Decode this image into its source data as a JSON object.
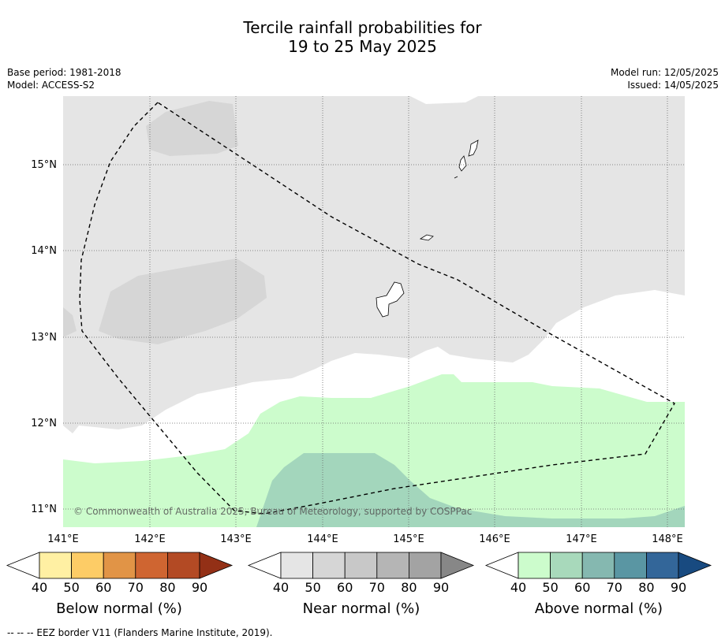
{
  "header": {
    "title_line1": "Tercile rainfall probabilities for",
    "title_line2": "19 to 25 May 2025"
  },
  "meta": {
    "base_period": "Base period: 1981-2018",
    "model": "Model: ACCESS-S2",
    "model_run": "Model run: 12/05/2025",
    "issued": "Issued: 14/05/2025"
  },
  "map": {
    "lon_labels": [
      "141°E",
      "142°E",
      "143°E",
      "144°E",
      "145°E",
      "146°E",
      "147°E",
      "148°E"
    ],
    "lat_labels": [
      "15°N",
      "14°N",
      "13°N",
      "12°N",
      "11°N"
    ],
    "copyright": "© Commonwealth of Australia 2025, Bureau of Meteorology, supported by COSPPac",
    "colors": {
      "near_40": "#e5e5e5",
      "near_50": "#d6d6d6",
      "above_40": "#ccfccc",
      "above_50": "#a3d6bc"
    }
  },
  "colorbars": [
    {
      "label": "Below normal (%)",
      "ticks": [
        "40",
        "50",
        "60",
        "70",
        "80",
        "90"
      ],
      "colors": [
        "#fff0a3",
        "#fdcc66",
        "#e19446",
        "#cf6531",
        "#b34a24",
        "#933016"
      ]
    },
    {
      "label": "Near normal (%)",
      "ticks": [
        "40",
        "50",
        "60",
        "70",
        "80",
        "90"
      ],
      "colors": [
        "#e5e5e5",
        "#d6d6d6",
        "#c8c8c8",
        "#b5b5b5",
        "#a3a3a3",
        "#878787"
      ]
    },
    {
      "label": "Above normal (%)",
      "ticks": [
        "40",
        "50",
        "60",
        "70",
        "80",
        "90"
      ],
      "colors": [
        "#ccfccc",
        "#a8d9bb",
        "#85b8b0",
        "#5a96a3",
        "#336699",
        "#184a80"
      ]
    }
  ],
  "footnote": "--  --  -- EEZ border V11 (Flanders Marine Institute, 2019)."
}
